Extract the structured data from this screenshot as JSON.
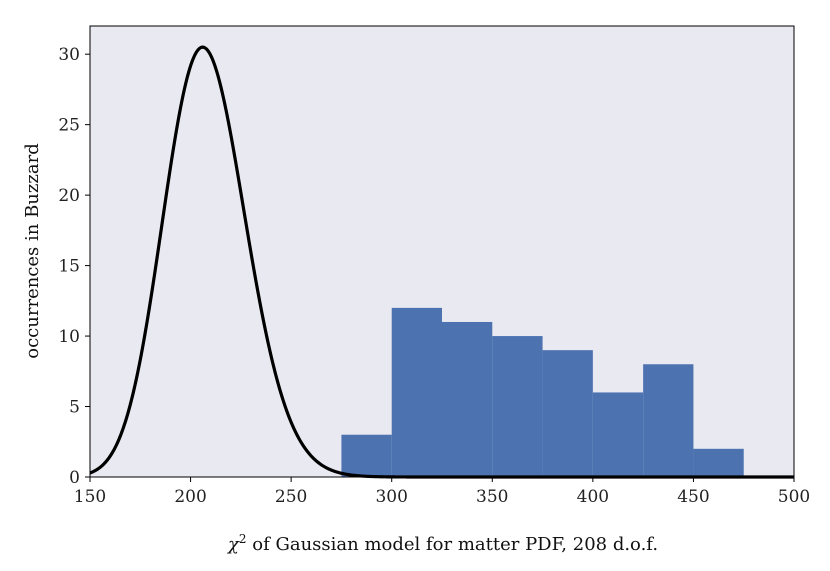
{
  "chart_data": {
    "type": "bar",
    "xlabel_prefix": "χ",
    "xlabel_sup": "2",
    "xlabel_rest": " of Gaussian model for matter PDF, 208 d.o.f.",
    "ylabel": "occurrences in Buzzard",
    "xlim": [
      150,
      500
    ],
    "ylim": [
      0,
      32
    ],
    "xticks": [
      150,
      200,
      250,
      300,
      350,
      400,
      450,
      500
    ],
    "yticks": [
      0,
      5,
      10,
      15,
      20,
      25,
      30
    ],
    "grid": false,
    "colors": {
      "background": "#e9e9f1",
      "bar": "#4c72b0",
      "curve": "#000000"
    },
    "histogram": {
      "bin_edges": [
        275,
        300,
        325,
        350,
        375,
        400,
        425,
        450,
        475
      ],
      "counts": [
        3,
        12,
        11,
        10,
        9,
        6,
        8,
        2
      ]
    },
    "curve": {
      "type": "scaled chi-squared pdf",
      "dof": 208,
      "peak_x": 206,
      "peak_y": 30.5
    }
  }
}
